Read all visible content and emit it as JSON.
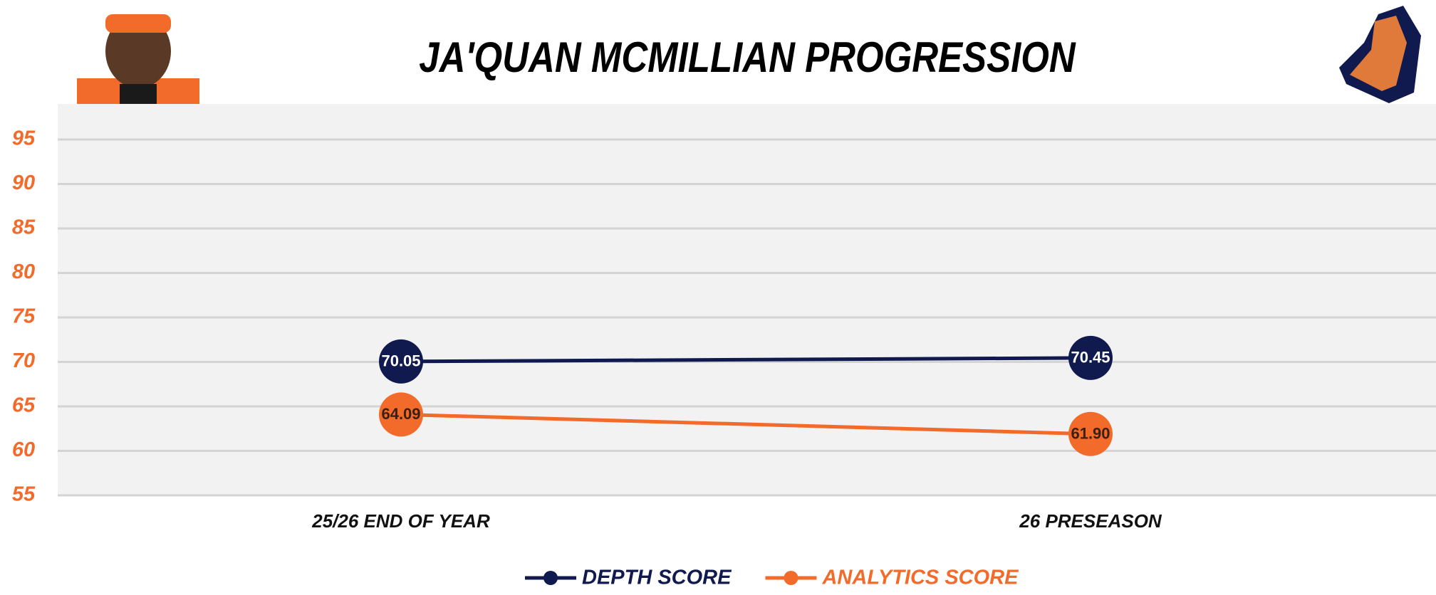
{
  "chart_data": {
    "type": "line",
    "title": "JA'QUAN MCMILLIAN PROGRESSION",
    "categories": [
      "25/26 END OF YEAR",
      "26 PRESEASON"
    ],
    "series": [
      {
        "name": "DEPTH SCORE",
        "color": "#101a4e",
        "values": [
          70.05,
          70.45
        ],
        "value_labels": [
          "70.05",
          "70.45"
        ]
      },
      {
        "name": "ANALYTICS SCORE",
        "color": "#f26b2a",
        "values": [
          64.09,
          61.9
        ],
        "value_labels": [
          "64.09",
          "61.90"
        ]
      }
    ],
    "ylim": [
      55,
      99
    ],
    "yticks": [
      55,
      60,
      65,
      70,
      75,
      80,
      85,
      90,
      95
    ],
    "grid": true,
    "legend": "bottom"
  }
}
